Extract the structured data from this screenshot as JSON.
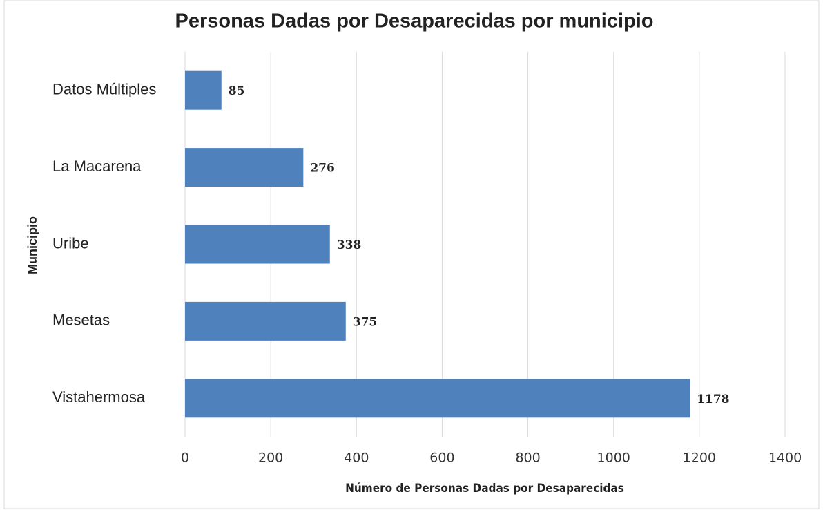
{
  "chart_data": {
    "type": "bar",
    "orientation": "horizontal",
    "title": "Personas Dadas por Desaparecidas por municipio",
    "x_label": "Número de Personas Dadas por Desaparecidas",
    "y_label": "Municipio",
    "categories": [
      "Datos Múltiples",
      "La Macarena",
      "Uribe",
      "Mesetas",
      "Vistahermosa"
    ],
    "values": [
      85,
      276,
      338,
      375,
      1178
    ],
    "color": "#4f81bd",
    "xlim": [
      0,
      1400
    ],
    "xticks": [
      0,
      200,
      400,
      600,
      800,
      1000,
      1200,
      1400
    ],
    "grid": true
  }
}
